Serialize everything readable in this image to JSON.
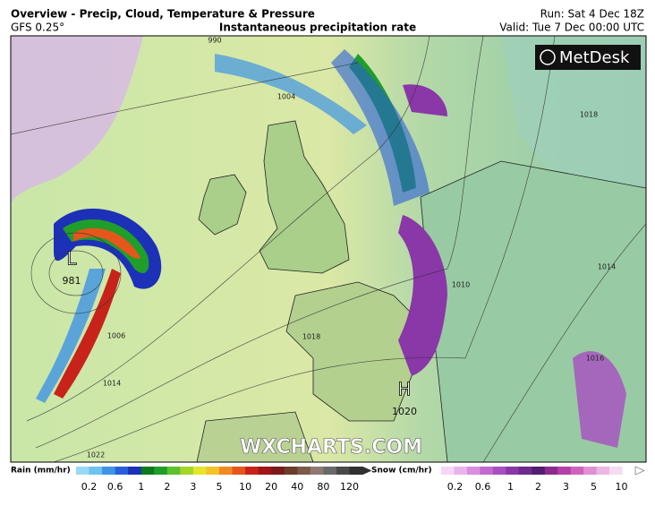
{
  "header": {
    "title": "Overview - Precip, Cloud, Temperature & Pressure",
    "model": "GFS 0.25°",
    "product": "Instantaneous precipitation rate",
    "run": "Run: Sat 4 Dec 18Z",
    "valid": "Valid: Tue 7 Dec 00:00 UTC"
  },
  "logo": "MetDesk",
  "watermark": "WXCHARTS.COM",
  "pressure_centers": [
    {
      "symbol": "L",
      "value": "981"
    },
    {
      "symbol": "H",
      "value": "1020"
    }
  ],
  "isobar_labels": [
    "990",
    "1004",
    "1006",
    "1010",
    "1014",
    "1018",
    "1022",
    "1014",
    "1018",
    "1016"
  ],
  "legend": {
    "rain": {
      "title": "Rain (mm/hr)",
      "labels": [
        "0.2",
        "0.6",
        "1",
        "2",
        "3",
        "5",
        "10",
        "20",
        "40",
        "80",
        "120"
      ],
      "colors": [
        "#9ad9f5",
        "#6cc3f0",
        "#3f94e6",
        "#2a5fd9",
        "#1c31b8",
        "#0b7a1e",
        "#1f9e2a",
        "#5dc12d",
        "#a4d62a",
        "#e3e62a",
        "#f5c22a",
        "#f08a22",
        "#e4561c",
        "#c8231a",
        "#a0141a",
        "#7a1a1a",
        "#6b3d2a",
        "#7a5a4a",
        "#8e7a72",
        "#6a6a6a",
        "#4a4a4a",
        "#303030"
      ]
    },
    "snow": {
      "title": "Snow (cm/hr)",
      "labels": [
        "0.2",
        "0.6",
        "1",
        "2",
        "3",
        "5",
        "10"
      ],
      "colors": [
        "#f5d6f5",
        "#e9b3ec",
        "#d98ee0",
        "#c268d0",
        "#a94ec0",
        "#8a37a8",
        "#6e2a8c",
        "#521d72",
        "#8b2a8f",
        "#b43fa8",
        "#cf62be",
        "#e08fd2",
        "#ecb6e3",
        "#f5dcf0",
        "#ffffff"
      ]
    }
  }
}
